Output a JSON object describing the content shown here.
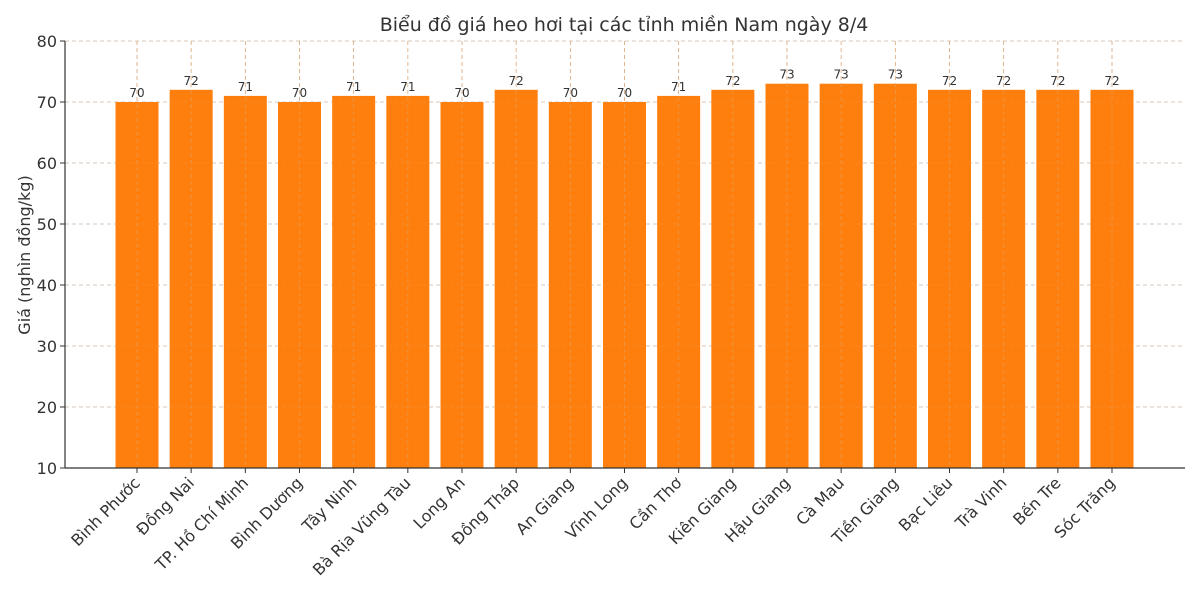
{
  "chart_data": {
    "type": "bar",
    "title": "Biểu đồ giá heo hơi tại các tỉnh miền Nam ngày 8/4",
    "xlabel": "",
    "ylabel": "Giá (nghìn đồng/kg)",
    "ylim": [
      10,
      80
    ],
    "yticks": [
      10,
      20,
      30,
      40,
      50,
      60,
      70,
      80
    ],
    "grid": true,
    "bar_color": "#ff7f0e",
    "categories": [
      "Bình Phước",
      "Đồng Nai",
      "TP. Hồ Chí Minh",
      "Bình Dương",
      "Tây Ninh",
      "Bà Rịa  Vũng Tàu",
      "Long An",
      "Đồng Tháp",
      "An Giang",
      "Vĩnh Long",
      "Cần Thơ",
      "Kiên Giang",
      "Hậu Giang",
      "Cà Mau",
      "Tiền Giang",
      "Bạc Liêu",
      "Trà Vinh",
      "Bến Tre",
      "Sóc Trăng"
    ],
    "values": [
      70,
      72,
      71,
      70,
      71,
      71,
      70,
      72,
      70,
      70,
      71,
      72,
      73,
      73,
      73,
      72,
      72,
      72,
      72
    ]
  }
}
